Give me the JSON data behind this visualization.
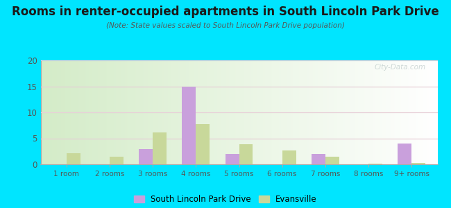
{
  "title": "Rooms in renter-occupied apartments in South Lincoln Park Drive",
  "subtitle": "(Note: State values scaled to South Lincoln Park Drive population)",
  "categories": [
    "1 room",
    "2 rooms",
    "3 rooms",
    "4 rooms",
    "5 rooms",
    "6 rooms",
    "7 rooms",
    "8 rooms",
    "9+ rooms"
  ],
  "south_lincoln": [
    0,
    0,
    3,
    15,
    2,
    0,
    2,
    0,
    4
  ],
  "evansville": [
    2.2,
    1.5,
    6.2,
    7.8,
    3.9,
    2.7,
    1.5,
    0.2,
    0.3
  ],
  "color_slp": "#c9a0dc",
  "color_ev": "#c8d89a",
  "ylim": [
    0,
    20
  ],
  "yticks": [
    0,
    5,
    10,
    15,
    20
  ],
  "bg_outer": "#00e5ff",
  "watermark": "City-Data.com",
  "legend_slp": "South Lincoln Park Drive",
  "legend_ev": "Evansville",
  "title_fontsize": 12,
  "subtitle_fontsize": 7.5
}
